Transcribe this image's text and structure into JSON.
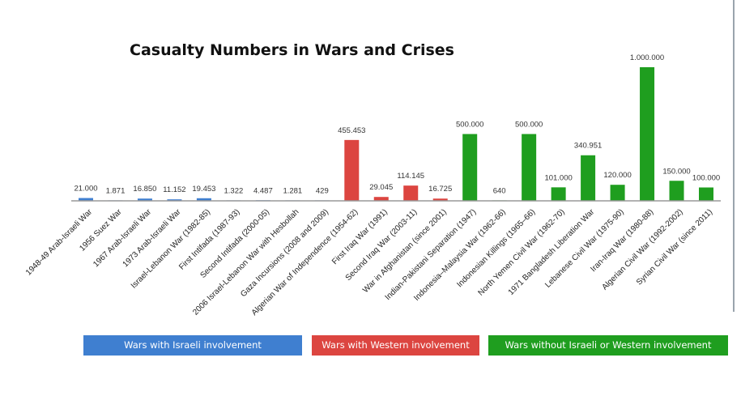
{
  "colors": {
    "israeli": "#3f7fd0",
    "western": "#dc4540",
    "other": "#1f9e1f"
  },
  "chart_data": {
    "type": "bar",
    "title": "Casualty Numbers in Wars and Crises",
    "xlabel": "",
    "ylabel": "",
    "ylim": [
      0,
      1000000
    ],
    "grid": false,
    "legend_placement": "bottom",
    "categories": [
      "1948-49 Arab-Israeli War",
      "1956 Suez War",
      "1967 Arab-Israeli War",
      "1973 Arab-Israeli War",
      "Israel-Lebanon War (1982-85)",
      "First Intifada (1987-93)",
      "Second Intifada (2000-05)",
      "2006 Israel-Lebanon War with Hesbollah",
      "Gaza Incursions (2008 and 2009)",
      "Algerian War of Independence (1954-62)",
      "First Iraq War (1991)",
      "Second Iraq War (2003-11)",
      "War in Afghanistan (since 2001)",
      "Indian-Pakistani Separation (1947)",
      "Indonesia–Malaysia War (1962-66)",
      "Indonesian Killings (1965–66)",
      "North Yemen Civil War (1962-70)",
      "1971 Bangladesh Liberation War",
      "Lebanese Civil War (1975-90)",
      "Iran-Iraq War (1980-88)",
      "Algerian Civil War (1992-2002)",
      "Syrian Civil War (since 2011)"
    ],
    "values": [
      21000,
      1871,
      16850,
      11152,
      19453,
      1322,
      4487,
      1281,
      429,
      455453,
      29045,
      114145,
      16725,
      500000,
      640,
      500000,
      101000,
      340951,
      120000,
      1000000,
      150000,
      100000
    ],
    "data_labels": [
      "21.000",
      "1.871",
      "16.850",
      "11.152",
      "19.453",
      "1.322",
      "4.487",
      "1.281",
      "429",
      "455.453",
      "29.045",
      "114.145",
      "16.725",
      "500.000",
      "640",
      "500.000",
      "101.000",
      "340.951",
      "120.000",
      "1.000.000",
      "150.000",
      "100.000"
    ],
    "groups": [
      "israeli",
      "israeli",
      "israeli",
      "israeli",
      "israeli",
      "israeli",
      "israeli",
      "israeli",
      "israeli",
      "western",
      "western",
      "western",
      "western",
      "other",
      "other",
      "other",
      "other",
      "other",
      "other",
      "other",
      "other",
      "other"
    ],
    "legend": [
      {
        "key": "israeli",
        "label": "Wars with Israeli involvement"
      },
      {
        "key": "western",
        "label": "Wars with Western involvement"
      },
      {
        "key": "other",
        "label": "Wars without Israeli or Western involvement"
      }
    ]
  }
}
